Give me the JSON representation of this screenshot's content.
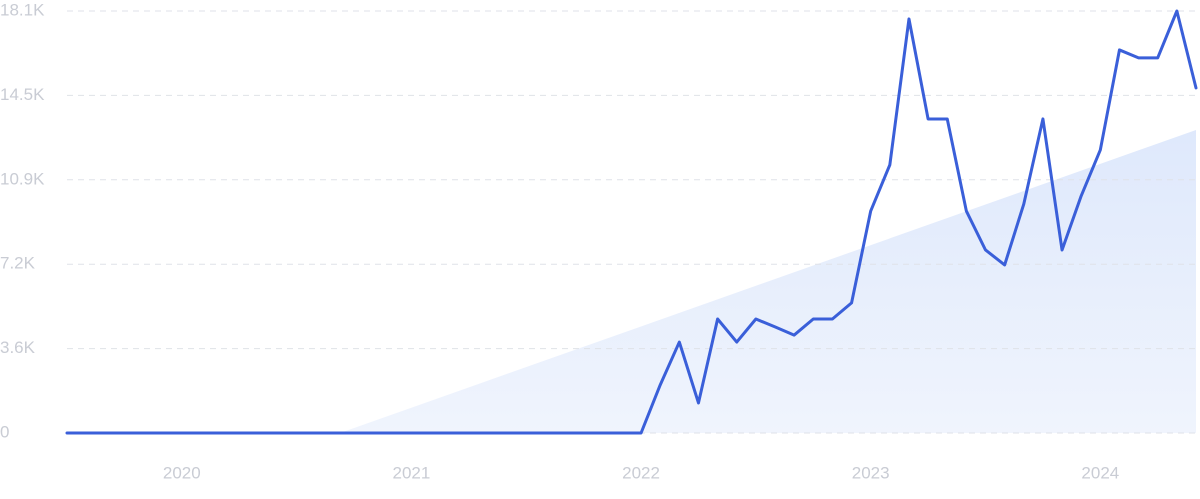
{
  "chart_data": {
    "type": "line",
    "x": [
      "2019-07",
      "2019-08",
      "2019-09",
      "2019-10",
      "2019-11",
      "2019-12",
      "2020-01",
      "2020-02",
      "2020-03",
      "2020-04",
      "2020-05",
      "2020-06",
      "2020-07",
      "2020-08",
      "2020-09",
      "2020-10",
      "2020-11",
      "2020-12",
      "2021-01",
      "2021-02",
      "2021-03",
      "2021-04",
      "2021-05",
      "2021-06",
      "2021-07",
      "2021-08",
      "2021-09",
      "2021-10",
      "2021-11",
      "2021-12",
      "2022-01",
      "2022-02",
      "2022-03",
      "2022-04",
      "2022-05",
      "2022-06",
      "2022-07",
      "2022-08",
      "2022-09",
      "2022-10",
      "2022-11",
      "2022-12",
      "2023-01",
      "2023-02",
      "2023-03",
      "2023-04",
      "2023-05",
      "2023-06",
      "2023-07",
      "2023-08",
      "2023-09",
      "2023-10",
      "2023-11",
      "2023-12",
      "2024-01",
      "2024-02",
      "2024-03",
      "2024-04",
      "2024-05",
      "2024-06"
    ],
    "values": [
      0,
      0,
      0,
      0,
      0,
      0,
      0,
      0,
      0,
      0,
      0,
      0,
      0,
      0,
      0,
      0,
      0,
      0,
      0,
      0,
      0,
      0,
      0,
      0,
      0,
      0,
      0,
      0,
      0,
      0,
      0,
      2060,
      3900,
      1290,
      4890,
      3900,
      4890,
      4550,
      4200,
      4890,
      4890,
      5580,
      9520,
      11500,
      17760,
      13470,
      13470,
      9520,
      7850,
      7210,
      9820,
      13470,
      7850,
      10170,
      12140,
      16430,
      16090,
      16090,
      18100,
      14800
    ],
    "color": "#3a5fd9",
    "ylim": [
      0,
      18100
    ],
    "yticks": [
      0,
      {
        "value": 3620,
        "label": "3.6K"
      },
      {
        "value": 7240,
        "label": "7.2K"
      },
      {
        "value": 10860,
        "label": "10.9K"
      },
      {
        "value": 14480,
        "label": "14.5K"
      },
      {
        "value": 18100,
        "label": "18.1K"
      }
    ],
    "xticks": [
      {
        "value": "2020-01",
        "label": "2020"
      },
      {
        "value": "2021-01",
        "label": "2021"
      },
      {
        "value": "2022-01",
        "label": "2022"
      },
      {
        "value": "2023-01",
        "label": "2023"
      },
      {
        "value": "2024-01",
        "label": "2024"
      }
    ],
    "grid": true
  }
}
